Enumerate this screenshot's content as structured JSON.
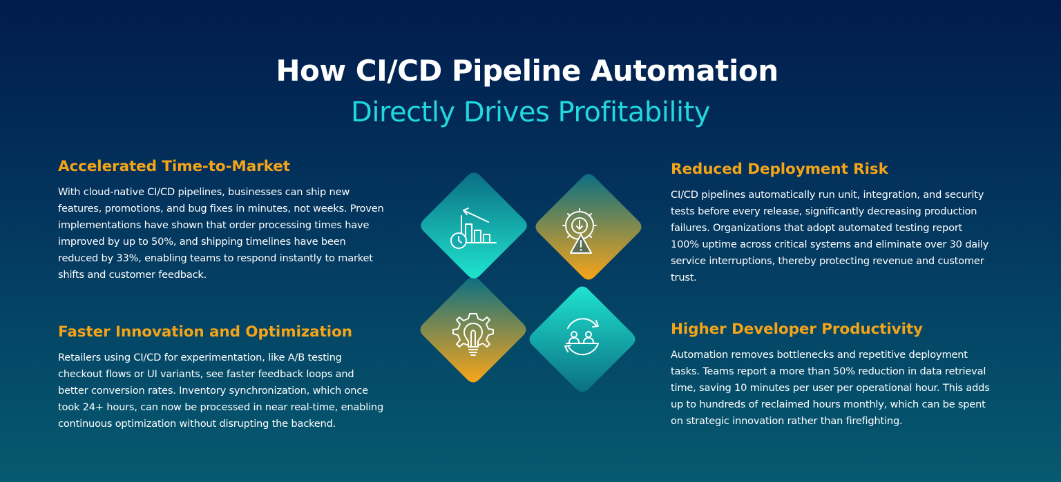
{
  "heading": {
    "title": "How CI/CD Pipeline Automation",
    "subtitle": "Directly Drives Profitability"
  },
  "sections": [
    {
      "title": "Accelerated Time-to-Market",
      "lines": [
        "With cloud-native CI/CD pipelines, businesses can ship new",
        "features, promotions, and bug fixes in minutes, not weeks. Proven",
        "implementations have shown that order processing times have",
        "improved by up to 50%, and shipping timelines have been",
        "reduced by 33%, enabling teams to respond instantly to market",
        "shifts and customer feedback."
      ],
      "icon": "timeline-chart-icon"
    },
    {
      "title": "Reduced Deployment Risk",
      "lines": [
        "CI/CD pipelines automatically run unit, integration, and security",
        "tests before every release, significantly decreasing production",
        "failures. Organizations that adopt automated testing report",
        "100% uptime across critical systems and eliminate over 30 daily",
        "service interruptions, thereby protecting revenue and customer",
        "trust."
      ],
      "icon": "gear-warning-icon"
    },
    {
      "title": "Faster Innovation and Optimization",
      "lines": [
        "Retailers using CI/CD for experimentation, like A/B testing",
        "checkout flows or UI variants, see faster feedback loops and",
        "better conversion rates. Inventory synchronization, which once",
        "took 24+ hours, can now be processed in near real-time, enabling",
        "continuous optimization without disrupting the backend."
      ],
      "icon": "lightbulb-gear-icon"
    },
    {
      "title": "Higher Developer Productivity",
      "lines": [
        "Automation removes bottlenecks and repetitive deployment",
        "tasks. Teams report a more than 50% reduction in data retrieval",
        "time, saving 10 minutes per user per operational hour. This adds",
        "up to hundreds of reclaimed hours monthly, which can be spent",
        "on strategic innovation rather than firefighting."
      ],
      "icon": "team-cycle-icon"
    }
  ],
  "colors": {
    "background_top": "#011b4d",
    "background_bottom": "#065a70",
    "accent_orange": "#f4a419",
    "accent_cyan": "#22d8de",
    "teal_diamond": "#1fe3cf",
    "orange_diamond": "#f7a51a"
  }
}
